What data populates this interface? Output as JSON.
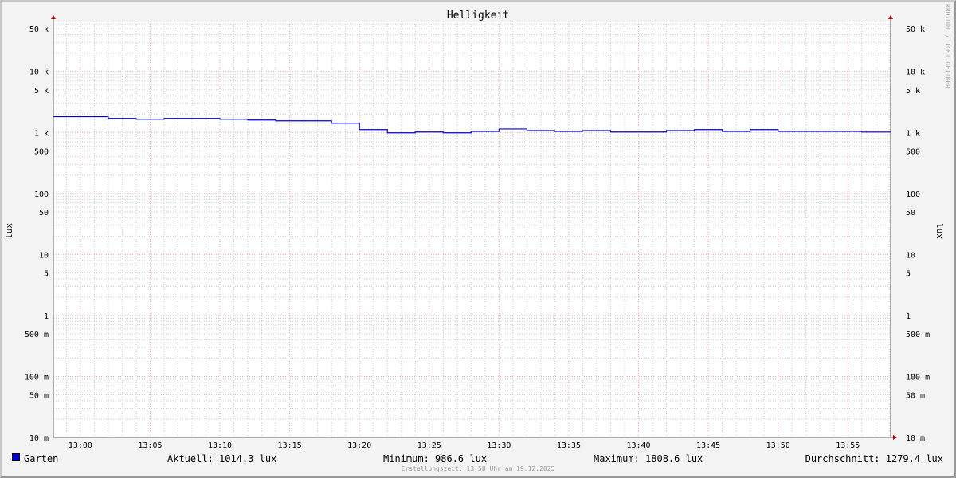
{
  "chart_data": {
    "type": "line",
    "title": "Helligkeit",
    "ylabel": "lux",
    "yscale": "log",
    "ylim": [
      0.01,
      66000
    ],
    "xlim": [
      "12:58",
      "13:58"
    ],
    "grid": true,
    "y_ticks": [
      "10 m",
      "50 m",
      "100 m",
      "500 m",
      "1",
      "5",
      "10",
      "50",
      "100",
      "500",
      "1 k",
      "5 k",
      "10 k",
      "50 k"
    ],
    "x_ticks": [
      "13:00",
      "13:05",
      "13:10",
      "13:15",
      "13:20",
      "13:25",
      "13:30",
      "13:35",
      "13:40",
      "13:45",
      "13:50",
      "13:55"
    ],
    "series": [
      {
        "name": "Garten",
        "color": "#0000cc",
        "step": true,
        "x": [
          "12:58",
          "13:02",
          "13:04",
          "13:06",
          "13:10",
          "13:12",
          "13:14",
          "13:18",
          "13:20",
          "13:22",
          "13:24",
          "13:26",
          "13:28",
          "13:30",
          "13:32",
          "13:34",
          "13:36",
          "13:38",
          "13:42",
          "13:44",
          "13:46",
          "13:48",
          "13:50",
          "13:56"
        ],
        "y": [
          1808.6,
          1694,
          1643,
          1694,
          1643,
          1595,
          1548,
          1414,
          1111,
          986.6,
          1015,
          986.6,
          1040,
          1140,
          1073,
          1040,
          1073,
          1015,
          1073,
          1111,
          1040,
          1111,
          1040,
          1014.3
        ]
      }
    ]
  },
  "legend": {
    "name": "Garten",
    "aktuell": "Aktuell: 1014.3 lux",
    "minimum": "Minimum: 986.6 lux",
    "maximum": "Maximum: 1808.6 lux",
    "durchschnitt": "Durchschnitt: 1279.4 lux"
  },
  "credit": "RRDTOOL / TOBI OETIKER",
  "footer": "Erstellungszeit: 13:58 Uhr am 19.12.2025"
}
